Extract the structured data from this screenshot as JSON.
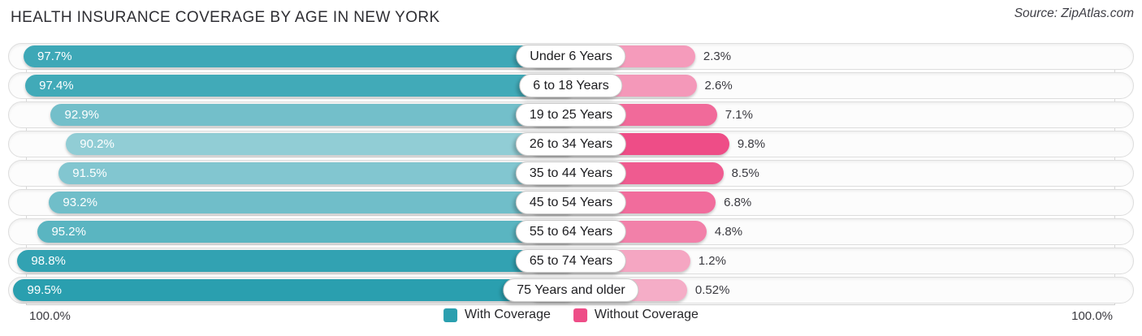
{
  "header": {
    "title": "HEALTH INSURANCE COVERAGE BY AGE IN NEW YORK",
    "source": "Source: ZipAtlas.com"
  },
  "chart_data": {
    "type": "bar",
    "orientation": "horizontal-diverging",
    "title": "Health Insurance Coverage by Age in New York",
    "categories": [
      "Under 6 Years",
      "6 to 18 Years",
      "19 to 25 Years",
      "26 to 34 Years",
      "35 to 44 Years",
      "45 to 54 Years",
      "55 to 64 Years",
      "65 to 74 Years",
      "75 Years and older"
    ],
    "series": [
      {
        "name": "With Coverage",
        "color": "#2A9FAF",
        "values": [
          97.7,
          97.4,
          92.9,
          90.2,
          91.5,
          93.2,
          95.2,
          98.8,
          99.5
        ],
        "labels": [
          "97.7%",
          "97.4%",
          "92.9%",
          "90.2%",
          "91.5%",
          "93.2%",
          "95.2%",
          "98.8%",
          "99.5%"
        ]
      },
      {
        "name": "Without Coverage",
        "color": "#EE4D87",
        "values": [
          2.3,
          2.6,
          7.1,
          9.8,
          8.5,
          6.8,
          4.8,
          1.2,
          0.52
        ],
        "labels": [
          "2.3%",
          "2.6%",
          "7.1%",
          "9.8%",
          "8.5%",
          "6.8%",
          "4.8%",
          "1.2%",
          "0.52%"
        ]
      }
    ],
    "x_axis": {
      "left_end_label": "100.0%",
      "right_end_label": "100.0%",
      "max_percent": 100,
      "grid": true
    },
    "legend_position": "bottom-center"
  },
  "legend": {
    "items": [
      {
        "label": "With Coverage",
        "color": "#2A9FAF"
      },
      {
        "label": "Without Coverage",
        "color": "#EE4D87"
      }
    ]
  }
}
